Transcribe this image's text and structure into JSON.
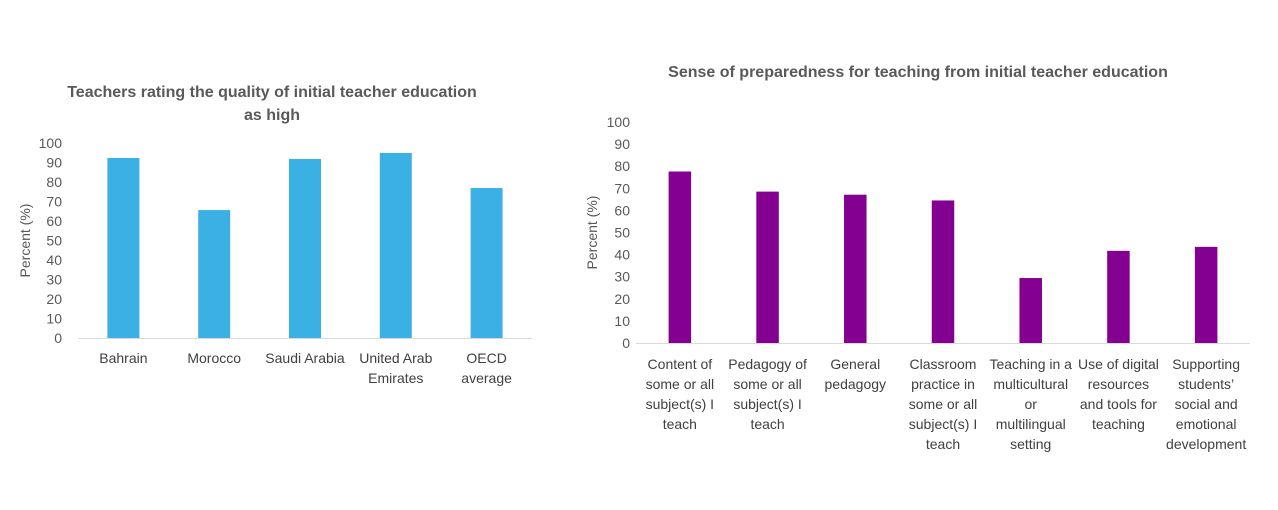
{
  "chart_data": [
    {
      "type": "bar",
      "title": [
        "Teachers rating the quality of initial teacher education",
        "as high"
      ],
      "ylabel": "Percent (%)",
      "xlabel": "",
      "ylim": [
        0,
        100
      ],
      "yticks": [
        0,
        10,
        20,
        30,
        40,
        50,
        60,
        70,
        80,
        90,
        100
      ],
      "grid": false,
      "color": "#3BB0E4",
      "categories": [
        [
          "Bahrain"
        ],
        [
          "Morocco"
        ],
        [
          "Saudi Arabia"
        ],
        [
          "United Arab",
          "Emirates"
        ],
        [
          "OECD",
          "average"
        ]
      ],
      "values": [
        92.3,
        65.6,
        91.8,
        94.9,
        76.9
      ]
    },
    {
      "type": "bar",
      "title": [
        "Sense of preparedness for teaching from initial teacher education"
      ],
      "ylabel": "Percent (%)",
      "xlabel": "",
      "ylim": [
        0,
        100
      ],
      "yticks": [
        0,
        10,
        20,
        30,
        40,
        50,
        60,
        70,
        80,
        90,
        100
      ],
      "grid": false,
      "color": "#840090",
      "categories": [
        [
          "Content of",
          "some or all",
          "subject(s) I",
          "teach"
        ],
        [
          "Pedagogy of",
          "some or all",
          "subject(s) I",
          "teach"
        ],
        [
          "General",
          "pedagogy"
        ],
        [
          "Classroom",
          "practice in",
          "some or all",
          "subject(s) I",
          "teach"
        ],
        [
          "Teaching in a",
          "multicultural",
          "or",
          "multilingual",
          "setting"
        ],
        [
          "Use of digital",
          "resources",
          "and tools for",
          "teaching"
        ],
        [
          "Supporting",
          "students’",
          "social and",
          "emotional",
          "development"
        ]
      ],
      "values": [
        77.6,
        68.5,
        67.1,
        64.5,
        29.4,
        41.7,
        43.5
      ]
    }
  ]
}
